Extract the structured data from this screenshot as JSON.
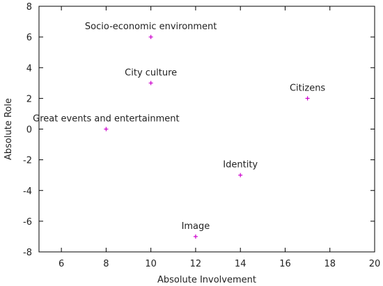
{
  "chart_data": {
    "type": "scatter",
    "xlabel": "Absolute Involvement",
    "ylabel": "Absolute Role",
    "xlim": [
      5,
      20
    ],
    "ylim": [
      -8,
      8
    ],
    "xticks": [
      6,
      8,
      10,
      12,
      14,
      16,
      18,
      20
    ],
    "yticks": [
      -8,
      -6,
      -4,
      -2,
      0,
      2,
      4,
      6,
      8
    ],
    "grid": false,
    "marker": "plus",
    "marker_color": "#cc00cc",
    "points": [
      {
        "label": "Socio-economic environment",
        "x": 10,
        "y": 6
      },
      {
        "label": "City culture",
        "x": 10,
        "y": 3
      },
      {
        "label": "Citizens",
        "x": 17,
        "y": 2
      },
      {
        "label": "Great events and entertainment",
        "x": 8,
        "y": 0
      },
      {
        "label": "Identity",
        "x": 14,
        "y": -3
      },
      {
        "label": "Image",
        "x": 12,
        "y": -7
      }
    ]
  }
}
